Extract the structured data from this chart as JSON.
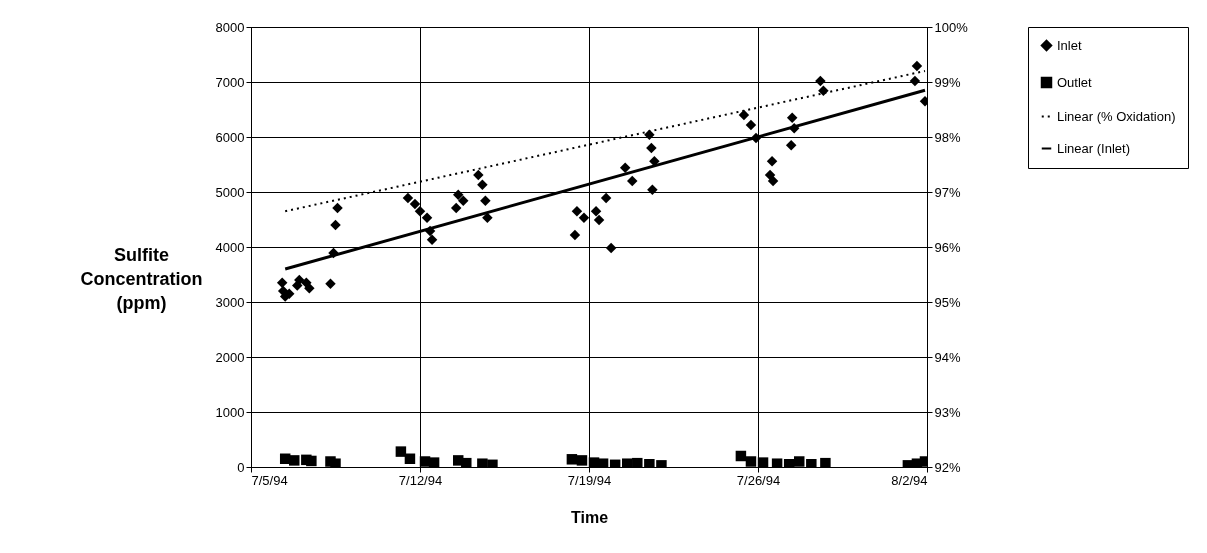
{
  "chart_data": {
    "type": "scatter",
    "xlabel": "Time",
    "ylabel": "Sulfite Concentration (ppm)",
    "xlim": [
      "1994-07-05",
      "1994-08-02"
    ],
    "xticks": [
      {
        "value": "1994-07-05",
        "label": "7/5/94"
      },
      {
        "value": "1994-07-12",
        "label": "7/12/94"
      },
      {
        "value": "1994-07-19",
        "label": "7/19/94"
      },
      {
        "value": "1994-07-26",
        "label": "7/26/94"
      },
      {
        "value": "1994-08-02",
        "label": "8/2/94"
      }
    ],
    "ylim": [
      0,
      8000
    ],
    "yticks": [
      0,
      1000,
      2000,
      3000,
      4000,
      5000,
      6000,
      7000,
      8000
    ],
    "y2lim": [
      92,
      100
    ],
    "y2ticks": [
      {
        "value": 92,
        "label": "92%"
      },
      {
        "value": 93,
        "label": "93%"
      },
      {
        "value": 94,
        "label": "94%"
      },
      {
        "value": 95,
        "label": "95%"
      },
      {
        "value": 96,
        "label": "96%"
      },
      {
        "value": 97,
        "label": "97%"
      },
      {
        "value": 98,
        "label": "98%"
      },
      {
        "value": 99,
        "label": "99%"
      },
      {
        "value": 100,
        "label": "100%"
      }
    ],
    "grid": true,
    "legend": "right",
    "series": [
      {
        "name": "Inlet",
        "marker": "diamond",
        "color": "#000000",
        "x": [
          "1994-07-06T07:00",
          "1994-07-06T08:00",
          "1994-07-06T10:00",
          "1994-07-06T14:00",
          "1994-07-06T22:00",
          "1994-07-07T00:00",
          "1994-07-07T07:00",
          "1994-07-07T10:00",
          "1994-07-08T07:00",
          "1994-07-08T10:00",
          "1994-07-08T12:00",
          "1994-07-08T14:00",
          "1994-07-11T12:00",
          "1994-07-11T19:00",
          "1994-07-12T00:00",
          "1994-07-12T07:00",
          "1994-07-12T10:00",
          "1994-07-12T12:00",
          "1994-07-13T12:00",
          "1994-07-13T14:00",
          "1994-07-13T19:00",
          "1994-07-14T10:00",
          "1994-07-14T14:00",
          "1994-07-14T17:00",
          "1994-07-14T19:00",
          "1994-07-18T10:00",
          "1994-07-18T12:00",
          "1994-07-18T19:00",
          "1994-07-19T07:00",
          "1994-07-19T10:00",
          "1994-07-19T17:00",
          "1994-07-19T22:00",
          "1994-07-20T12:00",
          "1994-07-20T19:00",
          "1994-07-21T12:00",
          "1994-07-21T14:00",
          "1994-07-21T17:00",
          "1994-07-21T15:00",
          "1994-07-25T10:00",
          "1994-07-25T17:00",
          "1994-07-25T22:00",
          "1994-07-26T14:00",
          "1994-07-26T12:00",
          "1994-07-26T15:00",
          "1994-07-27T10:00",
          "1994-07-27T12:00",
          "1994-07-27T09:00",
          "1994-07-28T14:00",
          "1994-07-28T17:00",
          "1994-08-01T14:00",
          "1994-08-01T12:00",
          "1994-08-01T22:00"
        ],
        "values": [
          3350,
          3200,
          3100,
          3150,
          3300,
          3400,
          3350,
          3250,
          3330,
          3890,
          4400,
          4710,
          4890,
          4780,
          4650,
          4530,
          4290,
          4130,
          4710,
          4950,
          4840,
          5310,
          5130,
          4840,
          4530,
          4220,
          4650,
          4530,
          4650,
          4490,
          4890,
          3980,
          5440,
          5200,
          6040,
          5800,
          5560,
          5040,
          6400,
          6220,
          5980,
          5560,
          5310,
          5200,
          6350,
          6160,
          5850,
          7020,
          6840,
          7290,
          7020,
          6650
        ]
      },
      {
        "name": "Outlet",
        "marker": "square",
        "color": "#000000",
        "x": [
          "1994-07-06T10:00",
          "1994-07-06T19:00",
          "1994-07-07T07:00",
          "1994-07-07T12:00",
          "1994-07-08T07:00",
          "1994-07-08T12:00",
          "1994-07-11T05:00",
          "1994-07-11T14:00",
          "1994-07-12T05:00",
          "1994-07-12T14:00",
          "1994-07-13T14:00",
          "1994-07-13T22:00",
          "1994-07-14T14:00",
          "1994-07-15T00:00",
          "1994-07-18T07:00",
          "1994-07-18T17:00",
          "1994-07-19T05:00",
          "1994-07-19T14:00",
          "1994-07-20T02:00",
          "1994-07-20T14:00",
          "1994-07-21T00:00",
          "1994-07-21T12:00",
          "1994-07-22T00:00",
          "1994-07-25T07:00",
          "1994-07-25T17:00",
          "1994-07-26T05:00",
          "1994-07-26T19:00",
          "1994-07-27T07:00",
          "1994-07-27T17:00",
          "1994-07-28T05:00",
          "1994-07-28T19:00",
          "1994-08-01T05:00",
          "1994-08-01T14:00",
          "1994-08-01T22:00"
        ],
        "values": [
          150,
          120,
          130,
          110,
          100,
          60,
          280,
          150,
          100,
          80,
          120,
          70,
          60,
          40,
          140,
          120,
          80,
          60,
          40,
          60,
          70,
          50,
          30,
          200,
          100,
          80,
          60,
          50,
          100,
          50,
          70,
          30,
          60,
          100
        ]
      },
      {
        "name": "Linear (% Oxidation)",
        "type": "line",
        "line_style": "dotted",
        "axis": "y2",
        "color": "#000000",
        "x": [
          "1994-07-06T10:00",
          "1994-08-01T22:00"
        ],
        "values": [
          96.65,
          99.2
        ]
      },
      {
        "name": "Linear (Inlet)",
        "type": "line",
        "line_style": "solid",
        "color": "#000000",
        "x": [
          "1994-07-06T10:00",
          "1994-08-01T22:00"
        ],
        "values": [
          3600,
          6850
        ]
      }
    ]
  }
}
